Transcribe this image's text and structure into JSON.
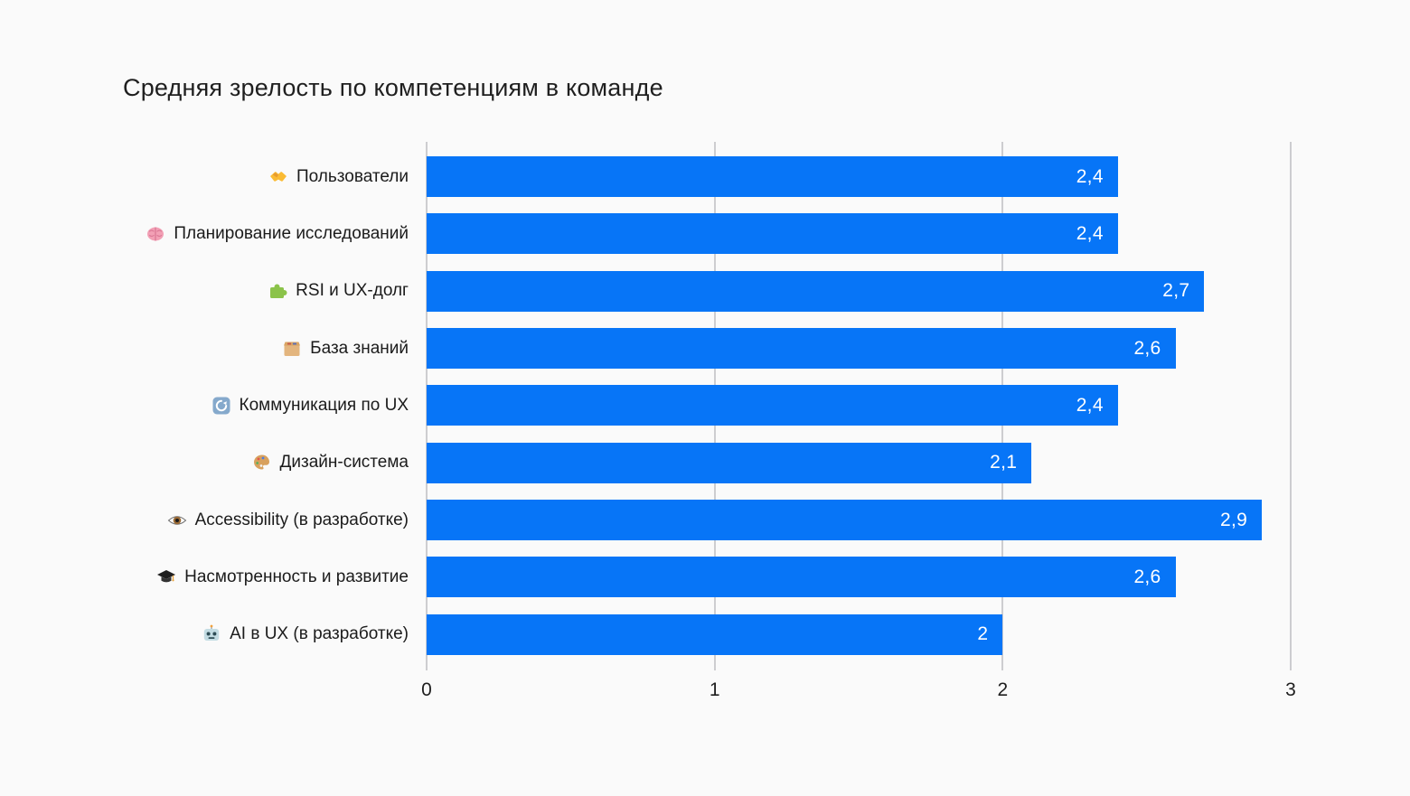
{
  "chart_data": {
    "type": "bar",
    "orientation": "horizontal",
    "title": "Средняя зрелость по компетенциям в команде",
    "categories": [
      {
        "emoji": "🤝",
        "icon": "handshake-icon",
        "label": "Пользователи"
      },
      {
        "emoji": "🧠",
        "icon": "brain-icon",
        "label": "Планирование исследований"
      },
      {
        "emoji": "🧩",
        "icon": "puzzle-piece-icon",
        "label": "RSI и UX-долг"
      },
      {
        "emoji": "🗃️",
        "icon": "card-file-box-icon",
        "label": "База знаний"
      },
      {
        "emoji": "🔄",
        "icon": "arrows-cycle-icon",
        "label": "Коммуникация по UX"
      },
      {
        "emoji": "🎨",
        "icon": "palette-icon",
        "label": "Дизайн-система"
      },
      {
        "emoji": "👁️",
        "icon": "eye-icon",
        "label": "Accessibility (в разработке)"
      },
      {
        "emoji": "🎓",
        "icon": "graduation-cap-icon",
        "label": "Насмотренность и развитие"
      },
      {
        "emoji": "🤖",
        "icon": "robot-icon",
        "label": "AI в UX (в разработке)"
      }
    ],
    "values": [
      2.4,
      2.4,
      2.7,
      2.6,
      2.4,
      2.1,
      2.9,
      2.6,
      2
    ],
    "value_labels": [
      "2,4",
      "2,4",
      "2,7",
      "2,6",
      "2,4",
      "2,1",
      "2,9",
      "2,6",
      "2"
    ],
    "xlabel": "",
    "ylabel": "",
    "xlim": [
      0,
      3
    ],
    "x_ticks": [
      "0",
      "1",
      "2",
      "3"
    ],
    "grid": "vertical-only",
    "legend": "none",
    "bar_color": "#0775F7",
    "value_label_color": "#FFFFFF",
    "grid_color": "#CDCDD0",
    "background_color": "#FAFAFA",
    "text_color": "#1F1F1F"
  }
}
